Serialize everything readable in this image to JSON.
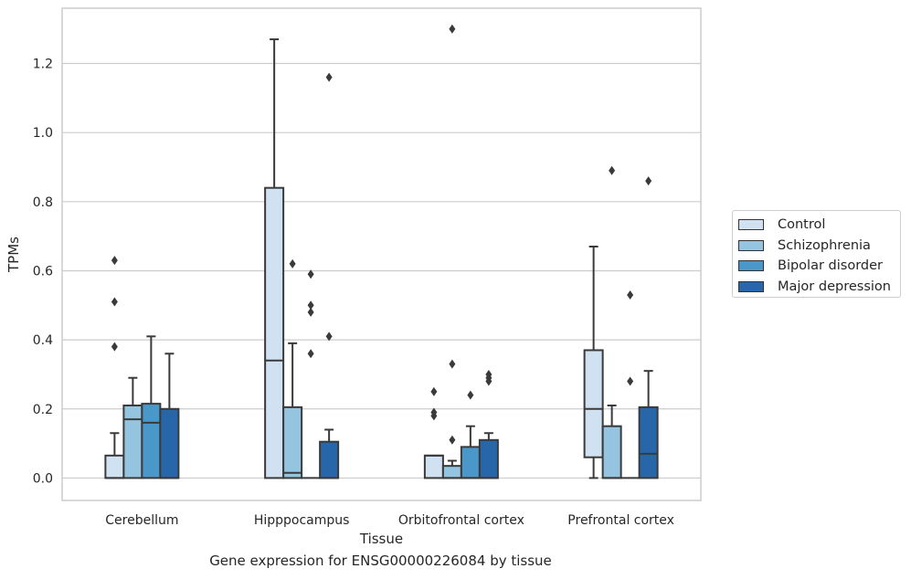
{
  "caption": "Gene expression for ENSG00000226084 by tissue",
  "chart_data": {
    "type": "box",
    "xlabel": "Tissue",
    "ylabel": "TPMs",
    "ylim": [
      -0.065,
      1.36
    ],
    "yticks": [
      "0.0",
      "0.2",
      "0.4",
      "0.6",
      "0.8",
      "1.0",
      "1.2"
    ],
    "grid": "horizontal",
    "legend_position": "right",
    "categories": [
      "Cerebellum",
      "Hipppocampus",
      "Orbitofrontal cortex",
      "Prefrontal cortex"
    ],
    "series": [
      {
        "name": "Control",
        "color": "#d0e1f2",
        "boxes": [
          {
            "q1": 0.0,
            "median": 0.0,
            "q3": 0.065,
            "whisker_low": 0.0,
            "whisker_high": 0.13,
            "outliers": [
              0.38,
              0.51,
              0.63
            ]
          },
          {
            "q1": 0.0,
            "median": 0.34,
            "q3": 0.84,
            "whisker_low": 0.0,
            "whisker_high": 1.27,
            "outliers": []
          },
          {
            "q1": 0.0,
            "median": 0.065,
            "q3": 0.065,
            "whisker_low": 0.0,
            "whisker_high": 0.065,
            "outliers": [
              0.18,
              0.19,
              0.25
            ]
          },
          {
            "q1": 0.06,
            "median": 0.2,
            "q3": 0.37,
            "whisker_low": 0.0,
            "whisker_high": 0.67,
            "outliers": []
          }
        ]
      },
      {
        "name": "Schizophrenia",
        "color": "#94c4df",
        "boxes": [
          {
            "q1": 0.0,
            "median": 0.17,
            "q3": 0.21,
            "whisker_low": 0.0,
            "whisker_high": 0.29,
            "outliers": []
          },
          {
            "q1": 0.0,
            "median": 0.015,
            "q3": 0.205,
            "whisker_low": 0.0,
            "whisker_high": 0.39,
            "outliers": [
              0.62
            ]
          },
          {
            "q1": 0.0,
            "median": 0.0,
            "q3": 0.035,
            "whisker_low": 0.0,
            "whisker_high": 0.05,
            "outliers": [
              0.11,
              0.33,
              1.3
            ]
          },
          {
            "q1": 0.0,
            "median": 0.0,
            "q3": 0.15,
            "whisker_low": 0.0,
            "whisker_high": 0.21,
            "outliers": [
              0.89
            ]
          }
        ]
      },
      {
        "name": "Bipolar disorder",
        "color": "#4a98c9",
        "boxes": [
          {
            "q1": 0.0,
            "median": 0.16,
            "q3": 0.215,
            "whisker_low": 0.0,
            "whisker_high": 0.41,
            "outliers": []
          },
          {
            "q1": 0.0,
            "median": 0.0,
            "q3": 0.0,
            "whisker_low": 0.0,
            "whisker_high": 0.0,
            "outliers": [
              0.36,
              0.48,
              0.5,
              0.59
            ]
          },
          {
            "q1": 0.0,
            "median": 0.0,
            "q3": 0.09,
            "whisker_low": 0.0,
            "whisker_high": 0.15,
            "outliers": [
              0.24
            ]
          },
          {
            "q1": 0.0,
            "median": 0.0,
            "q3": 0.0,
            "whisker_low": 0.0,
            "whisker_high": 0.0,
            "outliers": [
              0.28,
              0.53
            ]
          }
        ]
      },
      {
        "name": "Major depression",
        "color": "#2767a9",
        "boxes": [
          {
            "q1": 0.0,
            "median": 0.0,
            "q3": 0.2,
            "whisker_low": 0.0,
            "whisker_high": 0.36,
            "outliers": []
          },
          {
            "q1": 0.0,
            "median": 0.0,
            "q3": 0.105,
            "whisker_low": 0.0,
            "whisker_high": 0.14,
            "outliers": [
              0.41,
              1.16
            ]
          },
          {
            "q1": 0.0,
            "median": 0.0,
            "q3": 0.11,
            "whisker_low": 0.0,
            "whisker_high": 0.13,
            "outliers": [
              0.28,
              0.29,
              0.3
            ]
          },
          {
            "q1": 0.0,
            "median": 0.07,
            "q3": 0.205,
            "whisker_low": 0.0,
            "whisker_high": 0.31,
            "outliers": [
              0.86
            ]
          }
        ]
      }
    ]
  }
}
